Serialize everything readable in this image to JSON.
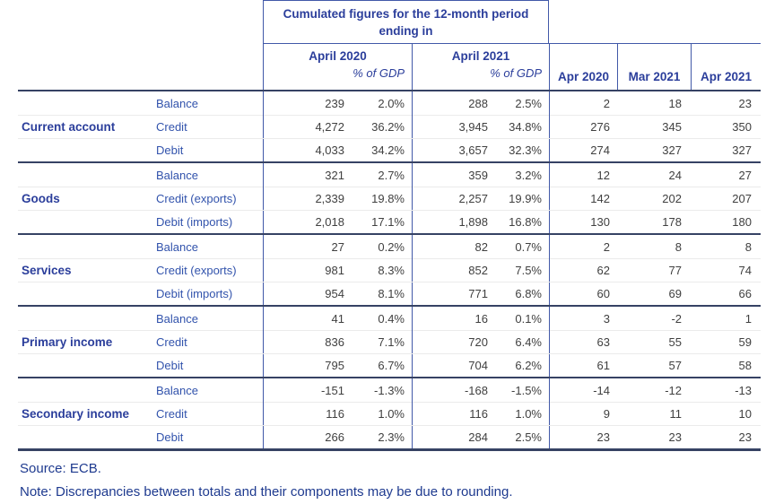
{
  "table": {
    "spanner": "Cumulated figures for the 12-month period ending in",
    "year_groups": [
      {
        "label": "April 2020",
        "sub": "% of GDP"
      },
      {
        "label": "April 2021",
        "sub": "% of GDP"
      }
    ],
    "month_cols": [
      "Apr 2020",
      "Mar 2021",
      "Apr 2021"
    ],
    "groups": [
      {
        "category": "Current account",
        "rows": [
          {
            "item": "Balance",
            "cells": [
              "239",
              "2.0%",
              "288",
              "2.5%",
              "2",
              "18",
              "23"
            ]
          },
          {
            "item": "Credit",
            "cells": [
              "4,272",
              "36.2%",
              "3,945",
              "34.8%",
              "276",
              "345",
              "350"
            ]
          },
          {
            "item": "Debit",
            "cells": [
              "4,033",
              "34.2%",
              "3,657",
              "32.3%",
              "274",
              "327",
              "327"
            ]
          }
        ]
      },
      {
        "category": "Goods",
        "rows": [
          {
            "item": "Balance",
            "cells": [
              "321",
              "2.7%",
              "359",
              "3.2%",
              "12",
              "24",
              "27"
            ]
          },
          {
            "item": "Credit (exports)",
            "cells": [
              "2,339",
              "19.8%",
              "2,257",
              "19.9%",
              "142",
              "202",
              "207"
            ]
          },
          {
            "item": "Debit (imports)",
            "cells": [
              "2,018",
              "17.1%",
              "1,898",
              "16.8%",
              "130",
              "178",
              "180"
            ]
          }
        ]
      },
      {
        "category": "Services",
        "rows": [
          {
            "item": "Balance",
            "cells": [
              "27",
              "0.2%",
              "82",
              "0.7%",
              "2",
              "8",
              "8"
            ]
          },
          {
            "item": "Credit (exports)",
            "cells": [
              "981",
              "8.3%",
              "852",
              "7.5%",
              "62",
              "77",
              "74"
            ]
          },
          {
            "item": "Debit (imports)",
            "cells": [
              "954",
              "8.1%",
              "771",
              "6.8%",
              "60",
              "69",
              "66"
            ]
          }
        ]
      },
      {
        "category": "Primary income",
        "rows": [
          {
            "item": "Balance",
            "cells": [
              "41",
              "0.4%",
              "16",
              "0.1%",
              "3",
              "-2",
              "1"
            ]
          },
          {
            "item": "Credit",
            "cells": [
              "836",
              "7.1%",
              "720",
              "6.4%",
              "63",
              "55",
              "59"
            ]
          },
          {
            "item": "Debit",
            "cells": [
              "795",
              "6.7%",
              "704",
              "6.2%",
              "61",
              "57",
              "58"
            ]
          }
        ]
      },
      {
        "category": "Secondary income",
        "rows": [
          {
            "item": "Balance",
            "cells": [
              "-151",
              "-1.3%",
              "-168",
              "-1.5%",
              "-14",
              "-12",
              "-13"
            ]
          },
          {
            "item": "Credit",
            "cells": [
              "116",
              "1.0%",
              "116",
              "1.0%",
              "9",
              "11",
              "10"
            ]
          },
          {
            "item": "Debit",
            "cells": [
              "266",
              "2.3%",
              "284",
              "2.5%",
              "23",
              "23",
              "23"
            ]
          }
        ]
      }
    ]
  },
  "footer": {
    "source": "Source: ECB.",
    "note": "Note: Discrepancies between totals and their components may be due to rounding."
  },
  "colors": {
    "text_blue": "#2b3e9b",
    "line_blue": "#4159a8",
    "line_navy": "#364264",
    "number_gray": "#404040"
  },
  "chart_data": {
    "type": "table",
    "title": "Cumulated figures for the 12-month period ending in",
    "columns": [
      "April 2020",
      "April 2020 % of GDP",
      "April 2021",
      "April 2021 % of GDP",
      "Apr 2020",
      "Mar 2021",
      "Apr 2021"
    ],
    "rows": [
      {
        "category": "Current account",
        "item": "Balance",
        "values": [
          239,
          2.0,
          288,
          2.5,
          2,
          18,
          23
        ]
      },
      {
        "category": "Current account",
        "item": "Credit",
        "values": [
          4272,
          36.2,
          3945,
          34.8,
          276,
          345,
          350
        ]
      },
      {
        "category": "Current account",
        "item": "Debit",
        "values": [
          4033,
          34.2,
          3657,
          32.3,
          274,
          327,
          327
        ]
      },
      {
        "category": "Goods",
        "item": "Balance",
        "values": [
          321,
          2.7,
          359,
          3.2,
          12,
          24,
          27
        ]
      },
      {
        "category": "Goods",
        "item": "Credit (exports)",
        "values": [
          2339,
          19.8,
          2257,
          19.9,
          142,
          202,
          207
        ]
      },
      {
        "category": "Goods",
        "item": "Debit (imports)",
        "values": [
          2018,
          17.1,
          1898,
          16.8,
          130,
          178,
          180
        ]
      },
      {
        "category": "Services",
        "item": "Balance",
        "values": [
          27,
          0.2,
          82,
          0.7,
          2,
          8,
          8
        ]
      },
      {
        "category": "Services",
        "item": "Credit (exports)",
        "values": [
          981,
          8.3,
          852,
          7.5,
          62,
          77,
          74
        ]
      },
      {
        "category": "Services",
        "item": "Debit (imports)",
        "values": [
          954,
          8.1,
          771,
          6.8,
          60,
          69,
          66
        ]
      },
      {
        "category": "Primary income",
        "item": "Balance",
        "values": [
          41,
          0.4,
          16,
          0.1,
          3,
          -2,
          1
        ]
      },
      {
        "category": "Primary income",
        "item": "Credit",
        "values": [
          836,
          7.1,
          720,
          6.4,
          63,
          55,
          59
        ]
      },
      {
        "category": "Primary income",
        "item": "Debit",
        "values": [
          795,
          6.7,
          704,
          6.2,
          61,
          57,
          58
        ]
      },
      {
        "category": "Secondary income",
        "item": "Balance",
        "values": [
          -151,
          -1.3,
          -168,
          -1.5,
          -14,
          -12,
          -13
        ]
      },
      {
        "category": "Secondary income",
        "item": "Credit",
        "values": [
          116,
          1.0,
          116,
          1.0,
          9,
          11,
          10
        ]
      },
      {
        "category": "Secondary income",
        "item": "Debit",
        "values": [
          266,
          2.3,
          284,
          2.5,
          23,
          23,
          23
        ]
      }
    ],
    "source": "Source: ECB.",
    "note": "Note: Discrepancies between totals and their components may be due to rounding."
  }
}
